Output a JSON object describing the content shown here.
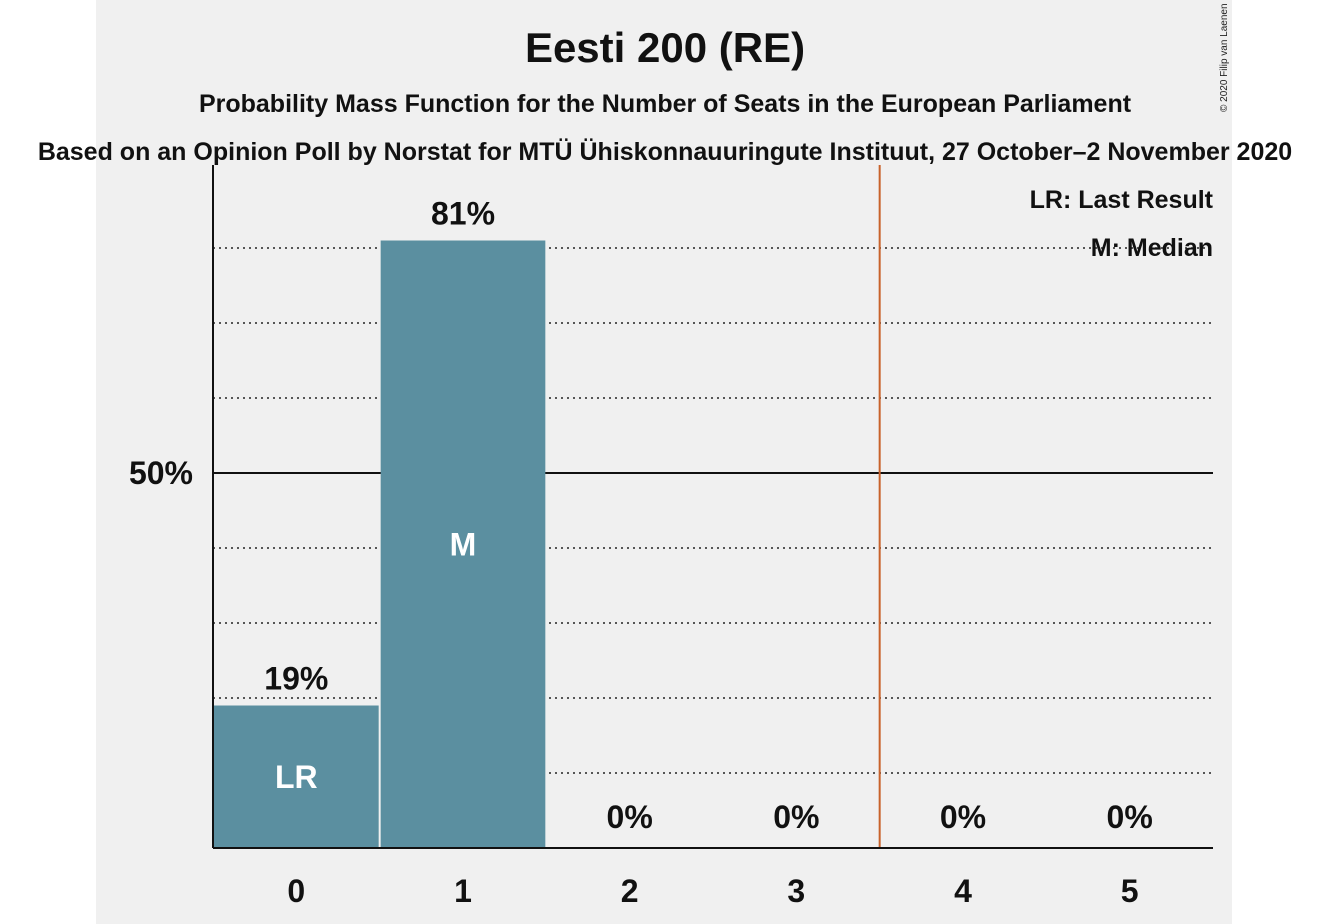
{
  "title": "Eesti 200 (RE)",
  "subtitle": "Probability Mass Function for the Number of Seats in the European Parliament",
  "subtitle2": "Based on an Opinion Poll by Norstat for MTÜ Ühiskonnauuringute Instituut, 27 October–2 November 2020",
  "copyright": "© 2020 Filip van Laenen",
  "legend": {
    "lr": "LR: Last Result",
    "m": "M: Median"
  },
  "chart_data": {
    "type": "bar",
    "categories": [
      "0",
      "1",
      "2",
      "3",
      "4",
      "5"
    ],
    "values": [
      19,
      81,
      0,
      0,
      0,
      0
    ],
    "value_labels": [
      "19%",
      "81%",
      "0%",
      "0%",
      "0%",
      "0%"
    ],
    "bar_marks": [
      "LR",
      "M",
      "",
      "",
      "",
      ""
    ],
    "ylim": [
      0,
      90
    ],
    "y_ticks": [
      {
        "value": 50,
        "label": "50%"
      }
    ],
    "gridlines_dotted": [
      10,
      20,
      30,
      40,
      60,
      70,
      80
    ],
    "last_result_line_x": 3.5,
    "colors": {
      "bar": "#5b8fa0",
      "last_result": "#c8622a",
      "background": "#f0f0f0"
    }
  }
}
